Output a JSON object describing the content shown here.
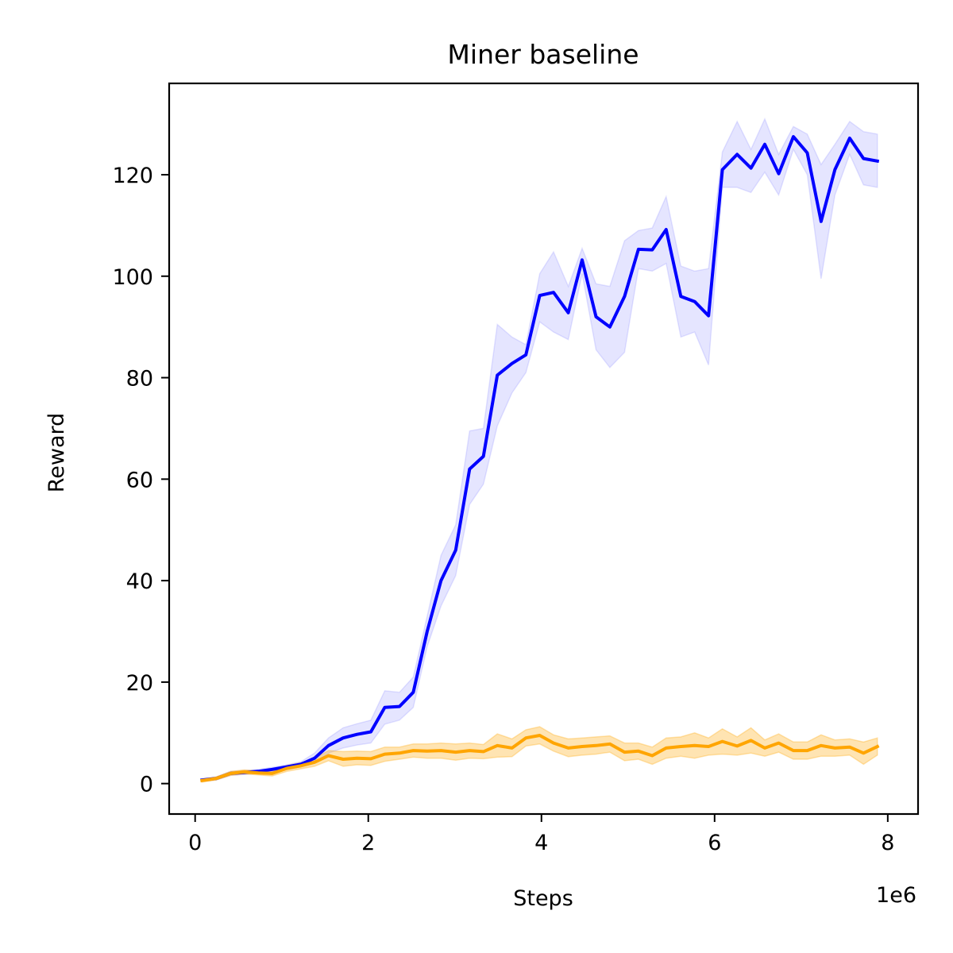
{
  "chart_data": {
    "type": "line",
    "title": "Miner baseline",
    "xlabel": "Steps",
    "ylabel": "Reward",
    "x_scale_label": "1e6",
    "xlim": [
      -0.3,
      8.35
    ],
    "ylim": [
      -6,
      138
    ],
    "x_ticks": [
      0,
      2,
      4,
      6,
      8
    ],
    "x_tick_labels": [
      "0",
      "2",
      "4",
      "6",
      "8"
    ],
    "y_ticks": [
      0,
      20,
      40,
      60,
      80,
      100,
      120
    ],
    "y_tick_labels": [
      "0",
      "20",
      "40",
      "60",
      "80",
      "100",
      "120"
    ],
    "grid": false,
    "legend": false,
    "colors": {
      "series_1": "#0000ff",
      "series_2": "#ffa500"
    },
    "x": [
      0.08,
      0.24,
      0.41,
      0.57,
      0.73,
      0.89,
      1.06,
      1.22,
      1.38,
      1.54,
      1.71,
      1.87,
      2.03,
      2.19,
      2.36,
      2.52,
      2.68,
      2.84,
      3.01,
      3.17,
      3.33,
      3.49,
      3.66,
      3.82,
      3.98,
      4.14,
      4.31,
      4.47,
      4.63,
      4.79,
      4.96,
      5.12,
      5.28,
      5.44,
      5.61,
      5.77,
      5.93,
      6.09,
      6.26,
      6.42,
      6.58,
      6.74,
      6.91,
      7.07,
      7.23,
      7.39,
      7.56,
      7.72,
      7.88
    ],
    "series": [
      {
        "values": [
          0.7,
          1.0,
          2.0,
          2.2,
          2.4,
          2.8,
          3.3,
          3.8,
          5.0,
          7.5,
          9.0,
          9.7,
          10.2,
          15.0,
          15.2,
          18.0,
          30.0,
          40.0,
          46.0,
          62.0,
          64.5,
          80.5,
          82.8,
          84.5,
          96.2,
          96.8,
          92.8,
          103.2,
          92.0,
          90.0,
          96.0,
          105.3,
          105.2,
          109.2,
          96.0,
          95.0,
          92.2,
          121.0,
          124.0,
          121.3,
          126.0,
          120.2,
          127.5,
          124.3,
          110.8,
          121.0,
          127.2,
          123.2,
          122.7
        ],
        "upper": [
          1.0,
          1.3,
          2.4,
          2.6,
          2.8,
          3.2,
          3.7,
          4.3,
          6.0,
          9.0,
          11.0,
          11.8,
          12.5,
          18.3,
          18.0,
          21.0,
          33.0,
          45.0,
          51.0,
          69.5,
          70.0,
          90.5,
          88.0,
          86.5,
          100.5,
          104.8,
          98.0,
          105.5,
          98.5,
          98.0,
          107.0,
          109.0,
          109.5,
          115.7,
          102.0,
          101.0,
          101.5,
          124.5,
          130.5,
          125.0,
          131.0,
          124.0,
          129.5,
          128.0,
          122.0,
          126.0,
          130.5,
          128.5,
          128.0
        ],
        "lower": [
          0.4,
          0.7,
          1.6,
          1.8,
          2.0,
          2.4,
          2.9,
          3.3,
          4.0,
          6.0,
          7.0,
          7.6,
          8.0,
          11.7,
          12.5,
          15.0,
          27.0,
          35.0,
          41.0,
          55.0,
          59.0,
          70.5,
          77.0,
          81.0,
          91.0,
          89.0,
          87.5,
          100.5,
          85.5,
          82.0,
          85.0,
          101.5,
          101.0,
          102.5,
          88.0,
          89.0,
          82.5,
          117.5,
          117.5,
          116.5,
          120.5,
          116.0,
          125.0,
          120.0,
          99.5,
          116.0,
          124.0,
          118.0,
          117.5
        ]
      },
      {
        "values": [
          0.6,
          1.0,
          2.0,
          2.3,
          2.1,
          2.0,
          3.0,
          3.5,
          4.2,
          5.5,
          4.8,
          5.0,
          4.9,
          5.8,
          6.0,
          6.5,
          6.4,
          6.5,
          6.2,
          6.5,
          6.3,
          7.5,
          7.0,
          9.0,
          9.5,
          8.0,
          7.0,
          7.3,
          7.5,
          7.8,
          6.2,
          6.4,
          5.5,
          7.0,
          7.3,
          7.5,
          7.3,
          8.3,
          7.4,
          8.5,
          7.0,
          8.0,
          6.5,
          6.5,
          7.5,
          7.0,
          7.2,
          6.0,
          7.3
        ],
        "upper": [
          0.9,
          1.3,
          2.4,
          2.7,
          2.5,
          2.5,
          3.6,
          4.1,
          5.0,
          6.5,
          6.3,
          6.4,
          6.3,
          7.2,
          7.2,
          7.8,
          7.8,
          8.0,
          7.8,
          8.0,
          7.7,
          9.8,
          8.8,
          10.6,
          11.2,
          9.6,
          8.8,
          9.0,
          9.2,
          9.4,
          8.0,
          8.0,
          7.2,
          9.0,
          9.2,
          10.0,
          9.0,
          10.8,
          9.2,
          11.0,
          8.6,
          9.8,
          8.2,
          8.2,
          9.6,
          8.6,
          8.8,
          8.2,
          9.0
        ],
        "lower": [
          0.3,
          0.7,
          1.6,
          1.9,
          1.7,
          1.5,
          2.4,
          2.9,
          3.4,
          4.5,
          3.4,
          3.7,
          3.6,
          4.4,
          4.8,
          5.2,
          5.0,
          5.0,
          4.6,
          5.0,
          4.9,
          5.2,
          5.3,
          7.4,
          7.8,
          6.4,
          5.3,
          5.6,
          5.8,
          6.2,
          4.5,
          4.8,
          3.8,
          5.0,
          5.4,
          5.0,
          5.6,
          5.8,
          5.6,
          6.0,
          5.4,
          6.2,
          4.8,
          4.8,
          5.4,
          5.4,
          5.6,
          3.8,
          5.6
        ]
      }
    ]
  }
}
